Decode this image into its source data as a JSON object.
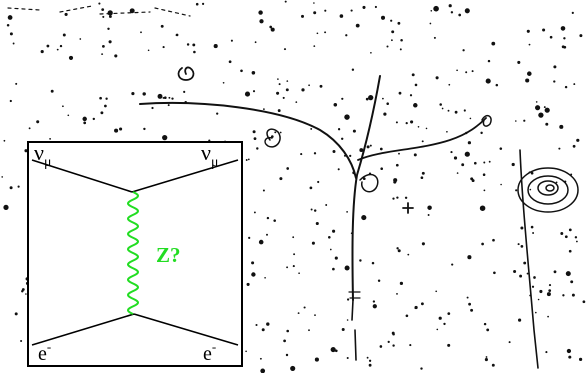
{
  "inset": {
    "top_left_particle": "ν",
    "top_left_subscript": "μ",
    "top_right_particle": "ν",
    "top_right_subscript": "μ",
    "bottom_left_particle": "e",
    "bottom_left_superscript": "-",
    "bottom_right_particle": "e",
    "bottom_right_superscript": "-",
    "boson_label": "Z?"
  },
  "colors": {
    "boson_line": "#22dd22",
    "boson_label": "#22dd22",
    "fermion_line": "#000000",
    "frame": "#000000",
    "photo_background": "#ffffff",
    "track_ink": "#111111"
  }
}
